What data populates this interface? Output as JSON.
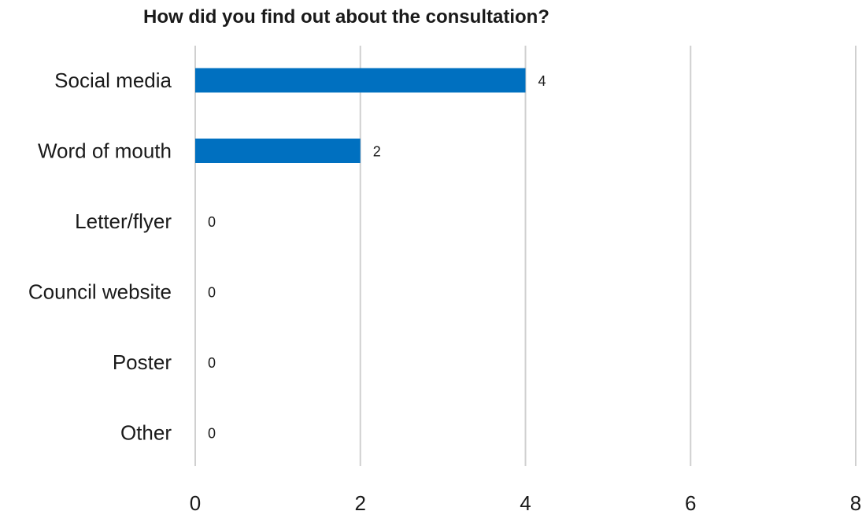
{
  "chart_data": {
    "type": "bar",
    "orientation": "horizontal",
    "title": "How did you find out about the consultation?",
    "categories": [
      "Social media",
      "Word of mouth",
      "Letter/flyer",
      "Council website",
      "Poster",
      "Other"
    ],
    "values": [
      4,
      2,
      0,
      0,
      0,
      0
    ],
    "data_labels": [
      "4",
      "2",
      "0",
      "0",
      "0",
      "0"
    ],
    "xlim": [
      0,
      8
    ],
    "x_ticks": [
      0,
      2,
      4,
      6,
      8
    ],
    "x_tick_labels": [
      "0",
      "2",
      "4",
      "6",
      "8"
    ],
    "grid": true,
    "legend": "none",
    "bar_color": "#0070C0",
    "grid_color": "#D0D0D0"
  }
}
